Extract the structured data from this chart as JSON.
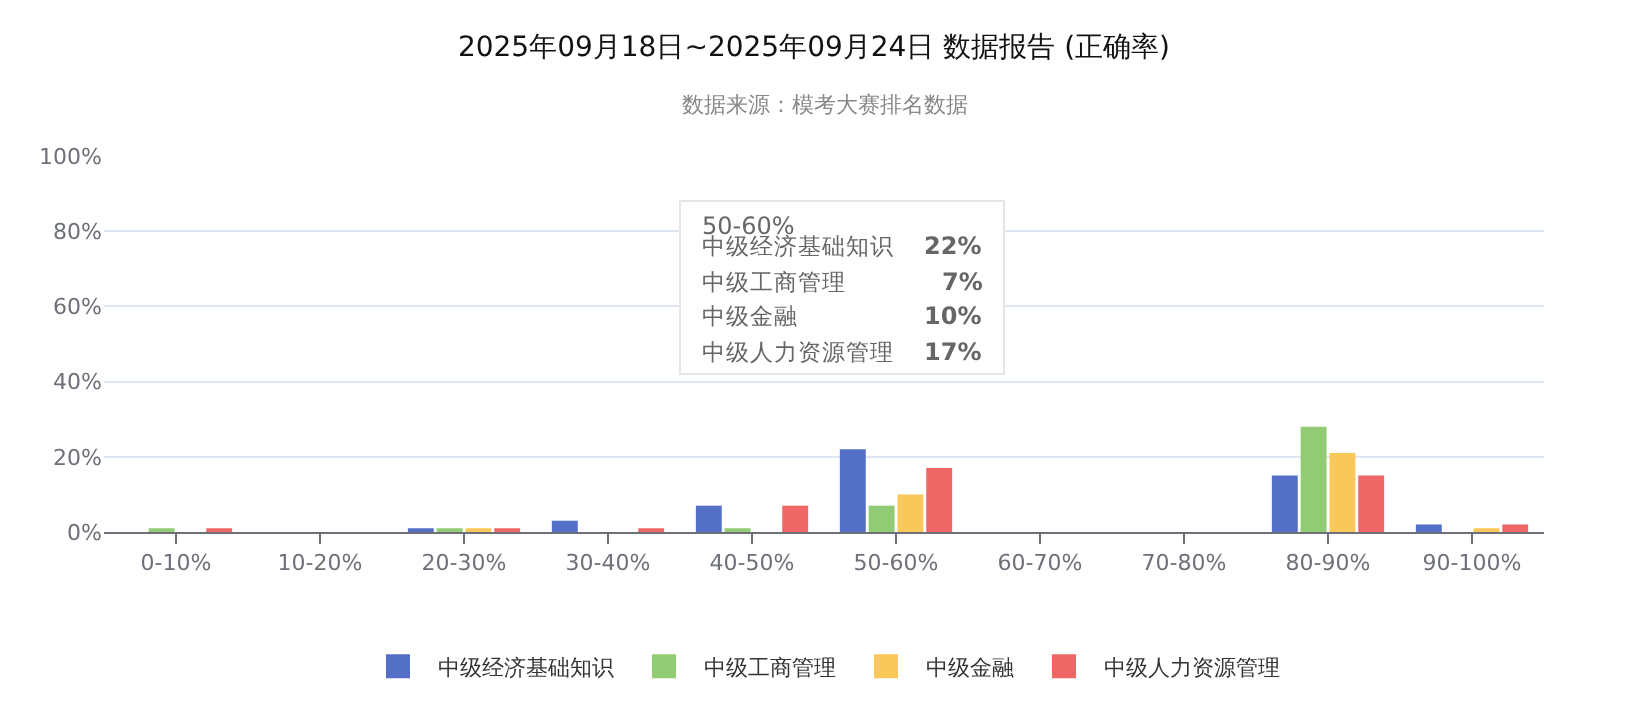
{
  "chart_data": {
    "type": "bar",
    "title": "2025年09月18日~2025年09月24日 数据报告 (正确率)",
    "subtitle": "数据来源：模考大赛排名数据",
    "categories": [
      "0-10%",
      "10-20%",
      "20-30%",
      "30-40%",
      "40-50%",
      "50-60%",
      "60-70%",
      "70-80%",
      "80-90%",
      "90-100%"
    ],
    "series": [
      {
        "name": "中级经济基础知识",
        "color": "#5470c6",
        "values": [
          0,
          0,
          1,
          3,
          7,
          22,
          null,
          null,
          15,
          2
        ]
      },
      {
        "name": "中级工商管理",
        "color": "#91cc75",
        "values": [
          1,
          0,
          1,
          0,
          1,
          7,
          null,
          null,
          28,
          0
        ]
      },
      {
        "name": "中级金融",
        "color": "#fac858",
        "values": [
          0,
          0,
          1,
          0,
          0,
          10,
          null,
          null,
          21,
          1
        ]
      },
      {
        "name": "中级人力资源管理",
        "color": "#ee6666",
        "values": [
          1,
          0,
          1,
          1,
          7,
          17,
          null,
          null,
          15,
          2
        ]
      }
    ],
    "ylim": [
      0,
      100
    ],
    "yticks": [
      {
        "value": 0,
        "label": "0%"
      },
      {
        "value": 20,
        "label": "20%"
      },
      {
        "value": 40,
        "label": "40%"
      },
      {
        "value": 60,
        "label": "60%"
      },
      {
        "value": 80,
        "label": "80%"
      },
      {
        "value": 100,
        "label": "100%"
      }
    ],
    "grid": "y",
    "legend": "bottom",
    "annotations": [
      "50-60%",
      "中级经济基础知识",
      "22%",
      "中级工商管理",
      "7%",
      "中级金融",
      "10%",
      "中级人力资源管理",
      "17%"
    ]
  }
}
